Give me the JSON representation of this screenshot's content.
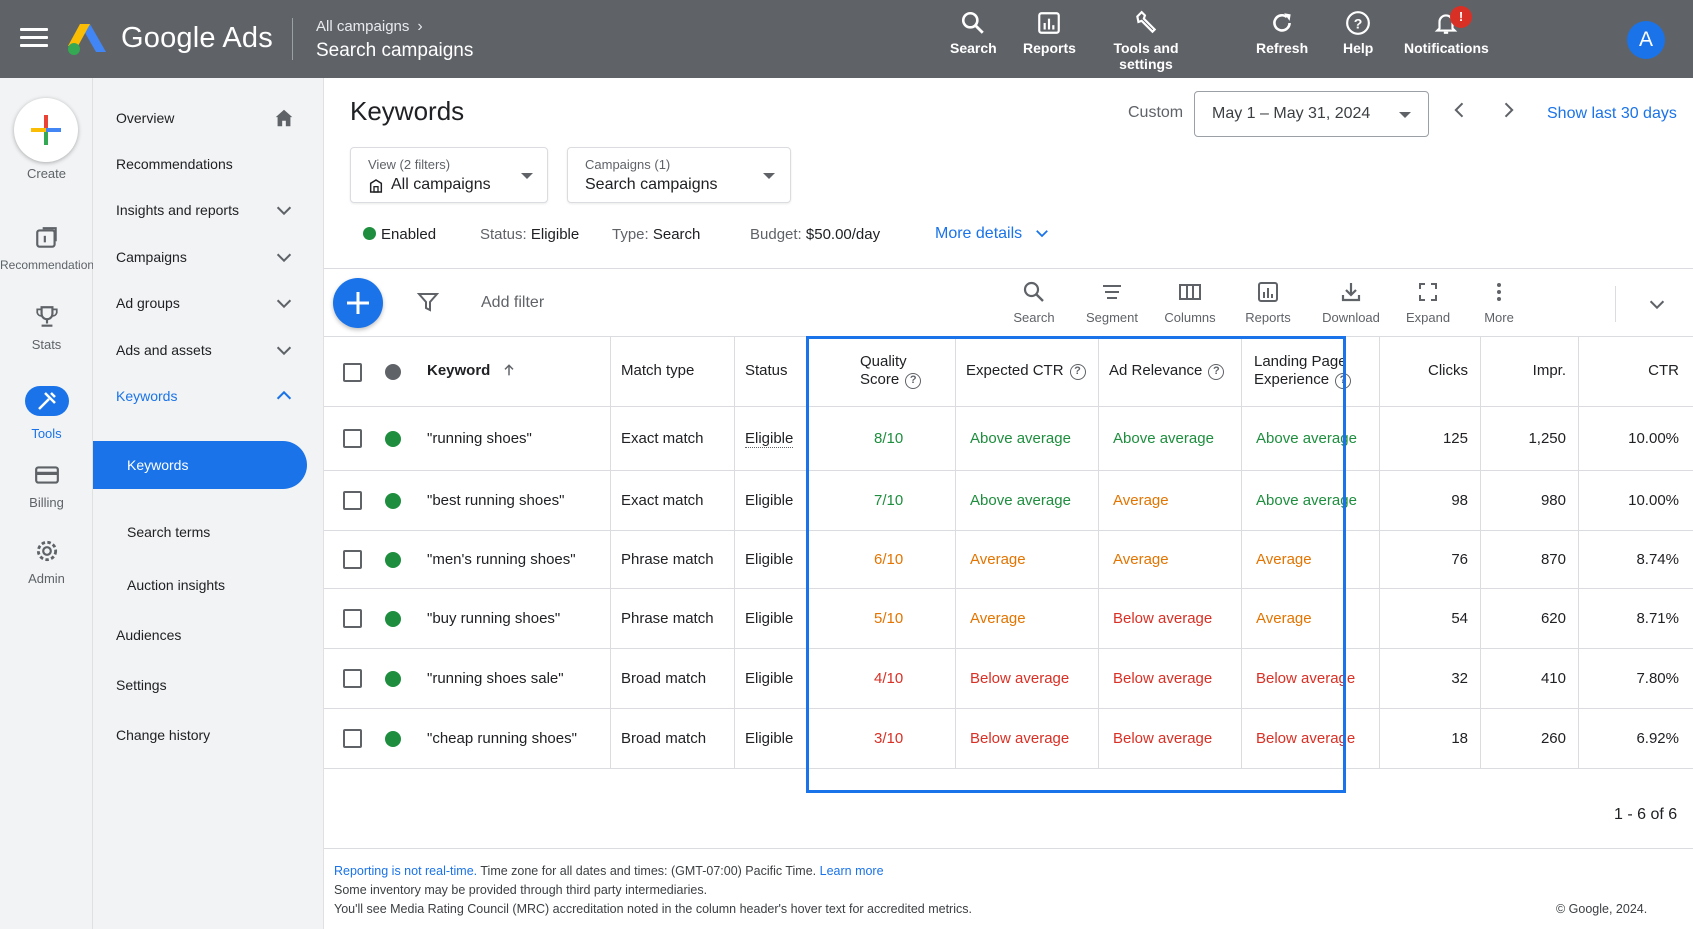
{
  "header": {
    "brand": "Google Ads",
    "breadcrumb_parent": "All campaigns",
    "breadcrumb_current": "Search campaigns",
    "actions": [
      {
        "label": "Search",
        "icon": "search-icon"
      },
      {
        "label": "Reports",
        "icon": "reports-icon"
      },
      {
        "label": "Tools and settings",
        "icon": "wrench-icon"
      },
      {
        "label": "Refresh",
        "icon": "refresh-icon"
      },
      {
        "label": "Help",
        "icon": "help-icon"
      },
      {
        "label": "Notifications",
        "icon": "bell-icon"
      }
    ],
    "notification_badge": "!",
    "avatar_letter": "A"
  },
  "rail": {
    "create": "Create",
    "items": [
      "Recommendations",
      "Stats",
      "Tools",
      "Billing",
      "Admin"
    ]
  },
  "nav": {
    "items": [
      "Overview",
      "Recommendations",
      "Insights and reports",
      "Campaigns",
      "Ad groups",
      "Ads and assets",
      "Keywords",
      "Keywords",
      "Search terms",
      "Auction insights",
      "Audiences",
      "Settings",
      "Change history"
    ]
  },
  "page": {
    "title": "Keywords",
    "custom_label": "Custom",
    "date_range": "May 1 – May 31, 2024",
    "show_last": "Show last 30 days",
    "view_filter": {
      "small": "View (2 filters)",
      "value": "All campaigns"
    },
    "campaign_filter": {
      "small": "Campaigns (1)",
      "value": "Search campaigns"
    },
    "status": {
      "enabled": "Enabled",
      "status_label": "Status:",
      "status_value": "Eligible",
      "type_label": "Type:",
      "type_value": "Search",
      "budget_label": "Budget:",
      "budget_value": "$50.00/day",
      "more_details": "More details"
    },
    "add_filter": "Add filter",
    "tools": [
      "Search",
      "Segment",
      "Columns",
      "Reports",
      "Download",
      "Expand",
      "More"
    ]
  },
  "table": {
    "headers": {
      "keyword": "Keyword",
      "match_type": "Match type",
      "status": "Status",
      "quality_1": "Quality",
      "quality_2": "Score",
      "expected_ctr": "Expected CTR",
      "ad_relevance": "Ad Relevance",
      "landing_1": "Landing Page",
      "landing_2": "Experience",
      "clicks": "Clicks",
      "impr": "Impr.",
      "ctr": "CTR"
    },
    "rows": [
      {
        "keyword": "\"running shoes\"",
        "match": "Exact match",
        "status": "Eligible",
        "qs": "8/10",
        "ectr": "Above average",
        "adrel": "Above average",
        "lpe": "Above average",
        "clicks": "125",
        "impr": "1,250",
        "ctr": "10.00%"
      },
      {
        "keyword": "\"best running shoes\"",
        "match": "Exact match",
        "status": "Eligible",
        "qs": "7/10",
        "ectr": "Above average",
        "adrel": "Average",
        "lpe": "Above average",
        "clicks": "98",
        "impr": "980",
        "ctr": "10.00%"
      },
      {
        "keyword": "\"men's running shoes\"",
        "match": "Phrase match",
        "status": "Eligible",
        "qs": "6/10",
        "ectr": "Average",
        "adrel": "Average",
        "lpe": "Average",
        "clicks": "76",
        "impr": "870",
        "ctr": "8.74%"
      },
      {
        "keyword": "\"buy running shoes\"",
        "match": "Phrase match",
        "status": "Eligible",
        "qs": "5/10",
        "ectr": "Average",
        "adrel": "Below average",
        "lpe": "Average",
        "clicks": "54",
        "impr": "620",
        "ctr": "8.71%"
      },
      {
        "keyword": "\"running shoes sale\"",
        "match": "Broad match",
        "status": "Eligible",
        "qs": "4/10",
        "ectr": "Below average",
        "adrel": "Below average",
        "lpe": "Below average",
        "clicks": "32",
        "impr": "410",
        "ctr": "7.80%"
      },
      {
        "keyword": "\"cheap running shoes\"",
        "match": "Broad match",
        "status": "Eligible",
        "qs": "3/10",
        "ectr": "Below average",
        "adrel": "Below average",
        "lpe": "Below average",
        "clicks": "18",
        "impr": "260",
        "ctr": "6.92%"
      }
    ],
    "pager": "1 - 6 of 6"
  },
  "footer": {
    "reporting_link": "Reporting is not real-time.",
    "timezone": " Time zone for all dates and times: (GMT-07:00) Pacific Time. ",
    "learn_more": "Learn more",
    "line2": "Some inventory may be provided through third party intermediaries.",
    "line3": "You'll see Media Rating Council (MRC) accreditation noted in the column header's hover text for accredited metrics.",
    "copyright": "© Google, 2024."
  },
  "colors": {
    "above_average": "#1e8e3e",
    "average": "#e37400",
    "below_average": "#d93025",
    "accent": "#1a73e8"
  }
}
